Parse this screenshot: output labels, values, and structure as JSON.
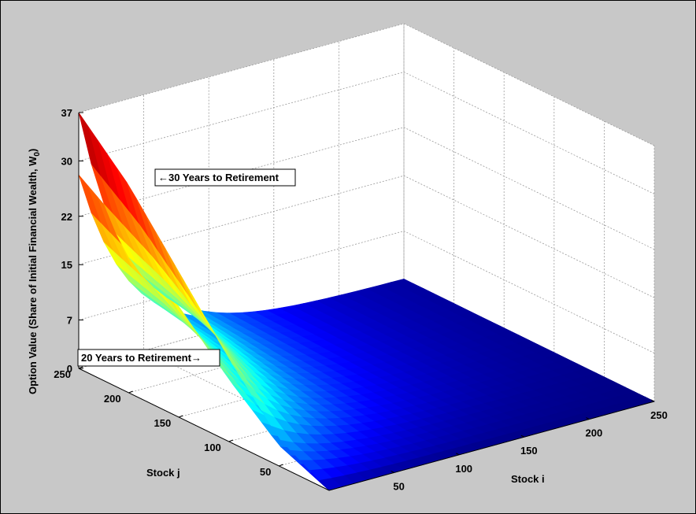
{
  "chart_data": {
    "type": "surface",
    "title": "",
    "zlabel": "Option Value (Share of Initial Financial Wealth, W",
    "zlabel_sub": "0",
    "zlabel_end": ")",
    "xlabel": "Stock i",
    "ylabel": "Stock j",
    "xlim": [
      0,
      250
    ],
    "ylim": [
      0,
      250
    ],
    "zlim": [
      0,
      37
    ],
    "x_ticks": [
      "50",
      "100",
      "150",
      "200",
      "250"
    ],
    "y_ticks": [
      "50",
      "100",
      "150",
      "200",
      "250"
    ],
    "z_ticks": [
      "0",
      "7",
      "15",
      "22",
      "30",
      "37"
    ],
    "grid": true,
    "colormap": "jet",
    "series": [
      {
        "label": "30 Years to Retirement",
        "arrow": "←",
        "peak_value": 37,
        "j_profile_at_i0": [
          [
            250,
            37
          ],
          [
            200,
            30
          ],
          [
            150,
            21
          ],
          [
            100,
            12
          ],
          [
            50,
            4
          ],
          [
            0,
            0
          ]
        ],
        "i_decay_scale": 40
      },
      {
        "label": "20 Years to Retirement",
        "arrow": "→",
        "peak_value": 28,
        "j_profile_at_i0": [
          [
            250,
            28
          ],
          [
            200,
            23
          ],
          [
            150,
            16
          ],
          [
            100,
            9
          ],
          [
            50,
            3
          ],
          [
            0,
            0
          ]
        ],
        "i_decay_scale": 40
      }
    ]
  }
}
